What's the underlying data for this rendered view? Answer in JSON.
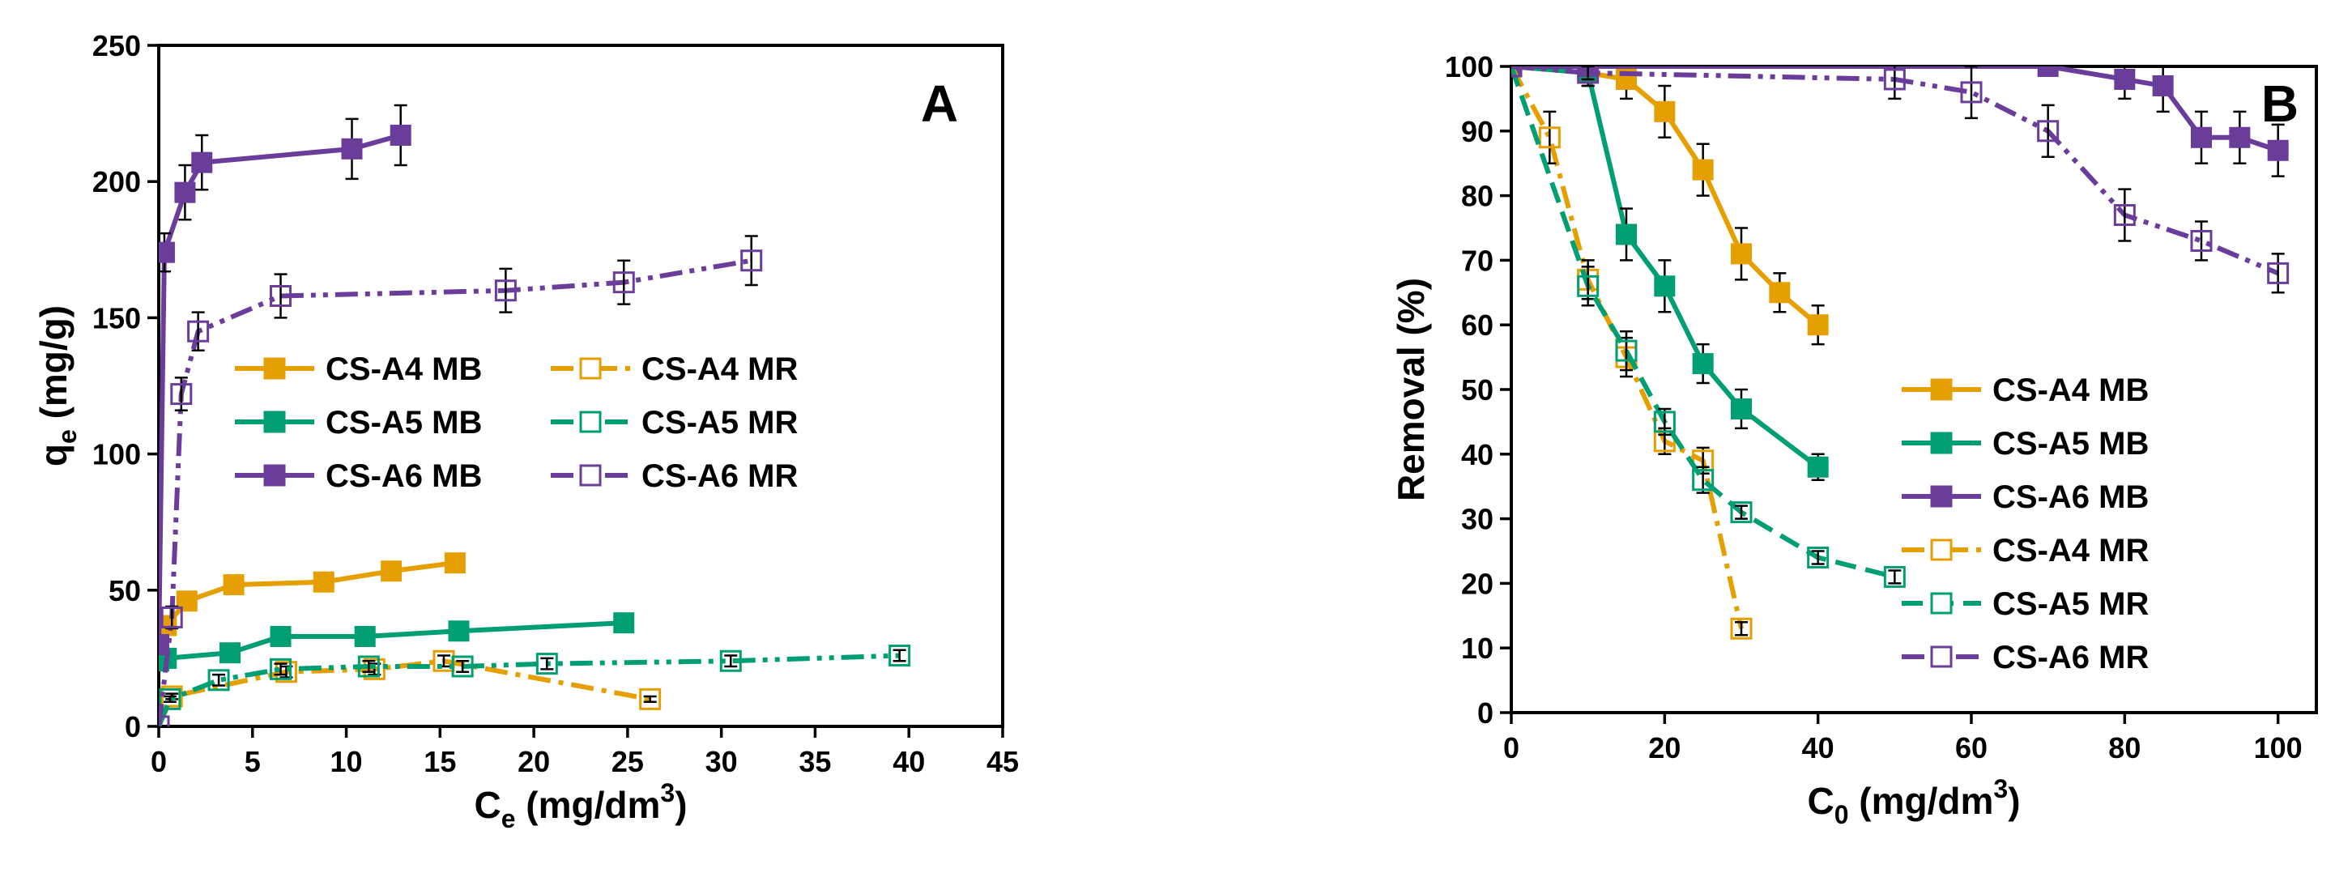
{
  "colors": {
    "orange": "#E69F00",
    "green": "#009E73",
    "purple": "#6A3D9A"
  },
  "chart_data": [
    {
      "type": "scatter",
      "panel_label": "A",
      "xlabel_base": "C",
      "xlabel_sub": "e",
      "xlabel_units": " (mg/dm",
      "xlabel_sup": "3",
      "xlabel_close": ")",
      "ylabel_base": "q",
      "ylabel_sub": "e",
      "ylabel_units": " (mg/g)",
      "xlim": [
        0,
        45
      ],
      "ylim": [
        0,
        250
      ],
      "xticks": [
        0,
        5,
        10,
        15,
        20,
        25,
        30,
        35,
        40,
        45
      ],
      "yticks": [
        0,
        50,
        100,
        150,
        200,
        250
      ],
      "legend_position": "center-right",
      "series": [
        {
          "name": "CS-A4 MB",
          "color": "orange",
          "marker": "filled-square",
          "line": "solid",
          "x": [
            0,
            0.4,
            1.5,
            4.0,
            8.8,
            12.4,
            15.8
          ],
          "y": [
            30,
            37,
            46,
            52,
            53,
            57,
            60
          ],
          "err": [
            3,
            3,
            3,
            3,
            3,
            3,
            3
          ]
        },
        {
          "name": "CS-A5 MB",
          "color": "green",
          "marker": "filled-square",
          "line": "solid",
          "x": [
            0,
            0.4,
            3.8,
            6.5,
            11.0,
            16.0,
            24.8
          ],
          "y": [
            24,
            25,
            27,
            33,
            33,
            35,
            38
          ],
          "err": [
            2,
            2,
            2,
            3,
            3,
            3,
            3
          ]
        },
        {
          "name": "CS-A6 MB",
          "color": "purple",
          "marker": "filled-square",
          "line": "solid",
          "x": [
            0,
            0.3,
            1.4,
            2.3,
            10.3,
            12.9
          ],
          "y": [
            30,
            174,
            196,
            207,
            212,
            217
          ],
          "err": [
            0,
            7,
            10,
            10,
            11,
            11
          ]
        },
        {
          "name": "CS-A4 MR",
          "color": "orange",
          "marker": "open-square",
          "line": "dashdot",
          "x": [
            0,
            0.7,
            6.8,
            11.5,
            15.2,
            26.2
          ],
          "y": [
            0,
            11,
            20,
            21,
            24,
            10
          ],
          "err": [
            0,
            1,
            2,
            2,
            2,
            1
          ]
        },
        {
          "name": "CS-A5 MR",
          "color": "green",
          "marker": "open-square",
          "line": "dashdotdot",
          "x": [
            0,
            0.6,
            3.2,
            6.5,
            11.2,
            16.2,
            20.7,
            30.5,
            39.5
          ],
          "y": [
            0,
            10,
            17,
            21,
            22,
            22,
            23,
            24,
            26
          ],
          "err": [
            0,
            1,
            2,
            2,
            2,
            2,
            2,
            2,
            2
          ]
        },
        {
          "name": "CS-A6 MR",
          "color": "purple",
          "marker": "open-square",
          "line": "dashdotdot",
          "x": [
            0,
            0.7,
            1.2,
            2.1,
            6.5,
            18.5,
            24.8,
            31.6
          ],
          "y": [
            0,
            40,
            122,
            145,
            158,
            160,
            163,
            171
          ],
          "err": [
            0,
            4,
            6,
            7,
            8,
            8,
            8,
            9
          ]
        }
      ]
    },
    {
      "type": "scatter",
      "panel_label": "B",
      "xlabel_base": "C",
      "xlabel_sub": "0",
      "xlabel_units": " (mg/dm",
      "xlabel_sup": "3",
      "xlabel_close": ")",
      "ylabel_base": "Removal (%)",
      "xlim": [
        0,
        105
      ],
      "ylim": [
        0,
        100
      ],
      "xticks": [
        0,
        20,
        40,
        60,
        80,
        100
      ],
      "yticks": [
        0,
        10,
        20,
        30,
        40,
        50,
        60,
        70,
        80,
        90,
        100
      ],
      "legend_position": "bottom-right",
      "series": [
        {
          "name": "CS-A4 MB",
          "color": "orange",
          "marker": "filled-square",
          "line": "solid",
          "x": [
            0,
            10,
            15,
            20,
            25,
            30,
            35,
            40
          ],
          "y": [
            100,
            99,
            98,
            93,
            84,
            71,
            65,
            60
          ],
          "err": [
            0,
            2,
            3,
            4,
            4,
            4,
            3,
            3
          ]
        },
        {
          "name": "CS-A5 MB",
          "color": "green",
          "marker": "filled-square",
          "line": "solid",
          "x": [
            0,
            10,
            15,
            20,
            25,
            30,
            40
          ],
          "y": [
            100,
            99,
            74,
            66,
            54,
            47,
            38
          ],
          "err": [
            0,
            2,
            4,
            4,
            3,
            3,
            2
          ]
        },
        {
          "name": "CS-A6 MB",
          "color": "purple",
          "marker": "filled-square",
          "line": "solid",
          "x": [
            0,
            10,
            70,
            80,
            85,
            90,
            95,
            100
          ],
          "y": [
            100,
            100,
            100,
            98,
            97,
            89,
            89,
            87
          ],
          "err": [
            0,
            1,
            1,
            3,
            4,
            4,
            4,
            4
          ]
        },
        {
          "name": "CS-A4 MR",
          "color": "orange",
          "marker": "open-square",
          "line": "dashdot",
          "x": [
            0,
            5,
            10,
            15,
            20,
            25,
            30
          ],
          "y": [
            100,
            89,
            67,
            55,
            42,
            39,
            13
          ],
          "err": [
            0,
            4,
            3,
            3,
            2,
            2,
            1
          ]
        },
        {
          "name": "CS-A5 MR",
          "color": "green",
          "marker": "open-square",
          "line": "dashed",
          "x": [
            0,
            10,
            15,
            20,
            25,
            30,
            40,
            50
          ],
          "y": [
            100,
            66,
            56,
            45,
            36,
            31,
            24,
            21
          ],
          "err": [
            0,
            3,
            3,
            2,
            2,
            1,
            1,
            1
          ]
        },
        {
          "name": "CS-A6 MR",
          "color": "purple",
          "marker": "open-square",
          "line": "dashdotdot",
          "x": [
            0,
            10,
            50,
            60,
            70,
            80,
            90,
            100
          ],
          "y": [
            100,
            99,
            98,
            96,
            90,
            77,
            73,
            68
          ],
          "err": [
            0,
            1,
            3,
            4,
            4,
            4,
            3,
            3
          ]
        }
      ]
    }
  ]
}
